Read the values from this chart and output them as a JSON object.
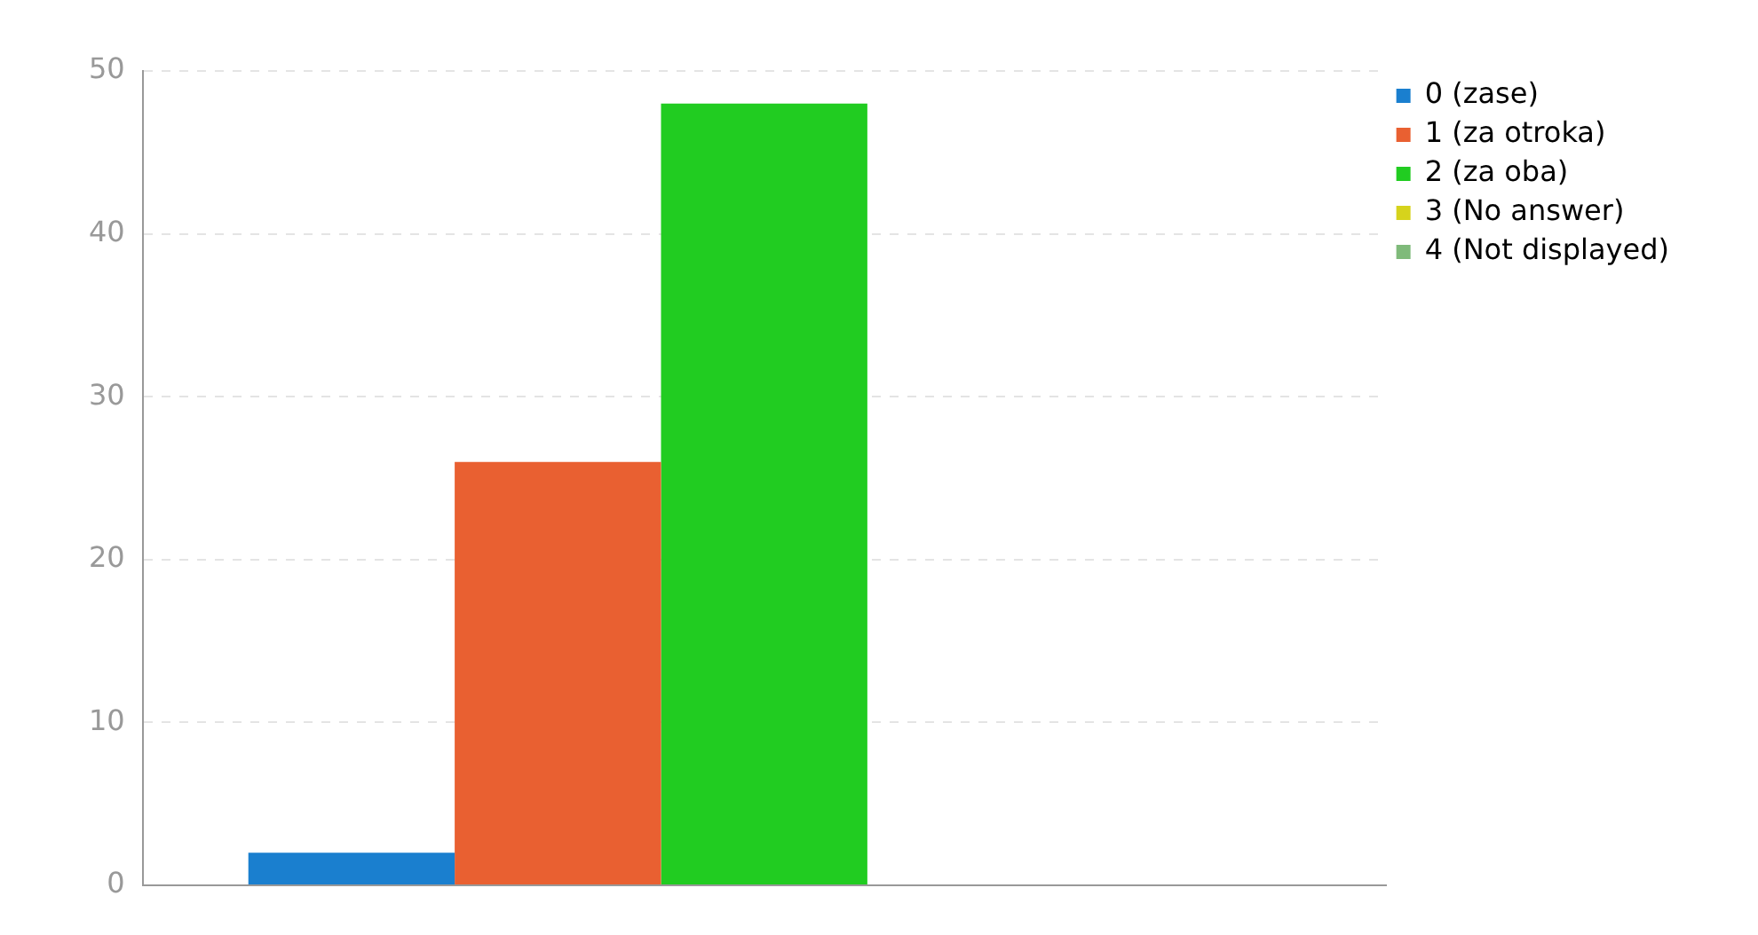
{
  "chart_data": {
    "type": "bar",
    "categories": [
      null
    ],
    "series": [
      {
        "name": "0 (zase)",
        "color": "#1a7fcf",
        "values": [
          2
        ]
      },
      {
        "name": "1 (za otroka)",
        "color": "#e96031",
        "values": [
          26
        ]
      },
      {
        "name": "2 (za oba)",
        "color": "#21cc21",
        "values": [
          48
        ]
      },
      {
        "name": "3 (No answer)",
        "color": "#d6d31c",
        "values": [
          0
        ]
      },
      {
        "name": "4 (Not displayed)",
        "color": "#7fba7a",
        "values": [
          0
        ]
      }
    ],
    "ylim": [
      0,
      50
    ],
    "yticks": [
      0,
      10,
      20,
      30,
      40,
      50
    ],
    "grid": "y",
    "legend": "top right",
    "tick_labels": "y"
  }
}
